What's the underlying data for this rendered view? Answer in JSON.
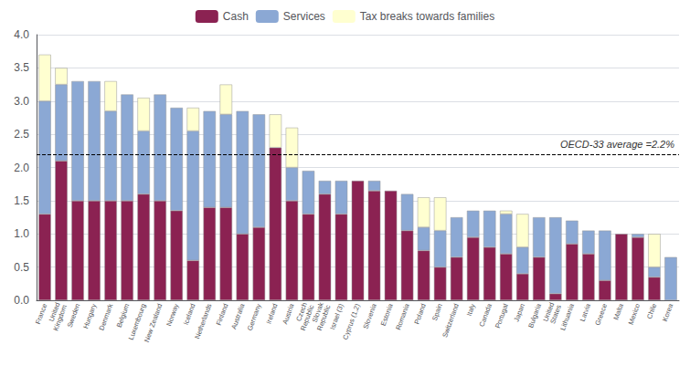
{
  "chart_data": {
    "type": "bar",
    "stacked": true,
    "categories": [
      "France",
      "United\nKingdom",
      "Sweden",
      "Hungary",
      "Denmark",
      "Belgium",
      "Luxembourg",
      "New Zealand",
      "Norway",
      "Iceland",
      "Netherlands",
      "Finland",
      "Australia",
      "Germany",
      "Ireland",
      "Austria",
      "Czech\nRepublic",
      "Slovak\nRepublic",
      "Israel (3)",
      "Cyprus (1,2)",
      "Slovenia",
      "Estonia",
      "Romania",
      "Poland",
      "Spain",
      "Switzerland",
      "Italy",
      "Canada",
      "Portugal",
      "Japan",
      "Bulgaria",
      "United\nStates",
      "Lithuania",
      "Latvia",
      "Greece",
      "Malta",
      "Mexico",
      "Chile",
      "Korea"
    ],
    "series": [
      {
        "name": "Cash",
        "color": "#8B2252",
        "values": [
          1.3,
          2.1,
          1.5,
          1.5,
          1.5,
          1.5,
          1.6,
          1.5,
          1.35,
          0.6,
          1.4,
          1.4,
          1.0,
          1.1,
          2.3,
          1.5,
          1.3,
          1.6,
          1.3,
          1.8,
          1.65,
          1.65,
          1.05,
          0.75,
          0.5,
          0.65,
          0.95,
          0.8,
          0.7,
          0.4,
          0.65,
          0.1,
          0.85,
          0.7,
          0.3,
          1.0,
          0.95,
          0.35,
          0.0
        ]
      },
      {
        "name": "Services",
        "color": "#8BA8D4",
        "values": [
          1.7,
          1.15,
          1.8,
          1.8,
          1.35,
          1.6,
          0.95,
          1.6,
          1.55,
          1.95,
          1.45,
          1.4,
          1.85,
          1.7,
          0.0,
          0.5,
          0.65,
          0.2,
          0.5,
          0.0,
          0.15,
          0.0,
          0.55,
          0.35,
          0.55,
          0.6,
          0.4,
          0.55,
          0.6,
          0.4,
          0.6,
          1.15,
          0.35,
          0.35,
          0.75,
          0.0,
          0.05,
          0.15,
          0.65
        ]
      },
      {
        "name": "Tax breaks towards families",
        "color": "#FFFFD0",
        "values": [
          0.7,
          0.25,
          0.0,
          0.0,
          0.45,
          0.0,
          0.5,
          0.0,
          0.0,
          0.35,
          0.0,
          0.45,
          0.0,
          0.0,
          0.5,
          0.6,
          0.0,
          0.0,
          0.0,
          0.0,
          0.0,
          0.0,
          0.0,
          0.45,
          0.5,
          0.0,
          0.0,
          0.0,
          0.05,
          0.5,
          0.0,
          0.0,
          0.0,
          0.0,
          0.0,
          0.0,
          0.0,
          0.5,
          0.0
        ]
      }
    ],
    "annotations": [
      {
        "text": "OECD-33 average =2.2%",
        "y": 2.2,
        "line_style": "dashed"
      }
    ],
    "ylim": [
      0,
      4.0
    ],
    "yticks": [
      {
        "value": 0.0,
        "label": "0.0"
      },
      0.5,
      {
        "value": 1.0,
        "label": "1.0"
      },
      1.5,
      {
        "value": 2.0,
        "label": "2.0"
      },
      2.5,
      {
        "value": 3.0,
        "label": "3.0"
      },
      3.5,
      {
        "value": 4.0,
        "label": "4.0"
      }
    ],
    "grid": true,
    "legend": "top"
  }
}
